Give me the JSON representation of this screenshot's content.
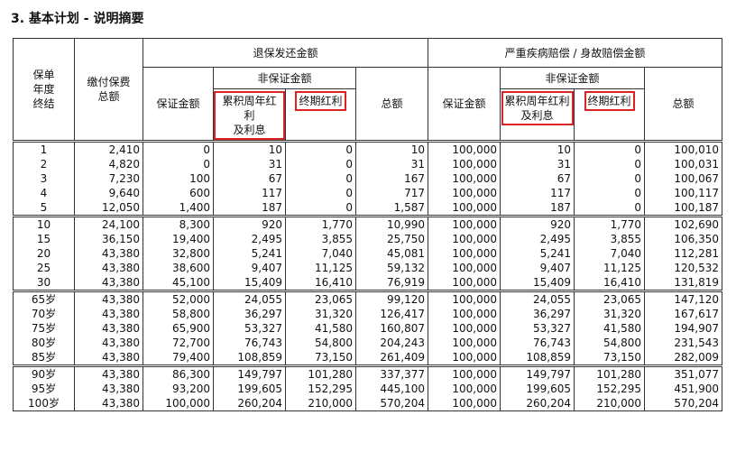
{
  "title": "3. 基本计划 - 说明摘要",
  "table": {
    "headers": {
      "policy_year": "保单\n年度\n终结",
      "premium": "缴付保费\n总额",
      "surrender_group": "退保发还金额",
      "claim_group": "严重疾病赔偿 / 身故赔偿金额",
      "guaranteed_1": "保证金额",
      "non_guaranteed_1": "非保证金额",
      "dividend_1": "累积周年红利\n及利息",
      "terminal_1": "终期红利",
      "total_1": "总额",
      "guaranteed_2": "保证金额",
      "non_guaranteed_2": "非保证金额",
      "dividend_2": "累积周年红利\n及利息",
      "terminal_2": "终期红利",
      "total_2": "总额"
    },
    "rows": [
      [
        "1",
        "2,410",
        "0",
        "10",
        "0",
        "10",
        "100,000",
        "10",
        "0",
        "100,010"
      ],
      [
        "2",
        "4,820",
        "0",
        "31",
        "0",
        "31",
        "100,000",
        "31",
        "0",
        "100,031"
      ],
      [
        "3",
        "7,230",
        "100",
        "67",
        "0",
        "167",
        "100,000",
        "67",
        "0",
        "100,067"
      ],
      [
        "4",
        "9,640",
        "600",
        "117",
        "0",
        "717",
        "100,000",
        "117",
        "0",
        "100,117"
      ],
      [
        "5",
        "12,050",
        "1,400",
        "187",
        "0",
        "1,587",
        "100,000",
        "187",
        "0",
        "100,187"
      ],
      [
        "10",
        "24,100",
        "8,300",
        "920",
        "1,770",
        "10,990",
        "100,000",
        "920",
        "1,770",
        "102,690"
      ],
      [
        "15",
        "36,150",
        "19,400",
        "2,495",
        "3,855",
        "25,750",
        "100,000",
        "2,495",
        "3,855",
        "106,350"
      ],
      [
        "20",
        "43,380",
        "32,800",
        "5,241",
        "7,040",
        "45,081",
        "100,000",
        "5,241",
        "7,040",
        "112,281"
      ],
      [
        "25",
        "43,380",
        "38,600",
        "9,407",
        "11,125",
        "59,132",
        "100,000",
        "9,407",
        "11,125",
        "120,532"
      ],
      [
        "30",
        "43,380",
        "45,100",
        "15,409",
        "16,410",
        "76,919",
        "100,000",
        "15,409",
        "16,410",
        "131,819"
      ],
      [
        "65岁",
        "43,380",
        "52,000",
        "24,055",
        "23,065",
        "99,120",
        "100,000",
        "24,055",
        "23,065",
        "147,120"
      ],
      [
        "70岁",
        "43,380",
        "58,800",
        "36,297",
        "31,320",
        "126,417",
        "100,000",
        "36,297",
        "31,320",
        "167,617"
      ],
      [
        "75岁",
        "43,380",
        "65,900",
        "53,327",
        "41,580",
        "160,807",
        "100,000",
        "53,327",
        "41,580",
        "194,907"
      ],
      [
        "80岁",
        "43,380",
        "72,700",
        "76,743",
        "54,800",
        "204,243",
        "100,000",
        "76,743",
        "54,800",
        "231,543"
      ],
      [
        "85岁",
        "43,380",
        "79,400",
        "108,859",
        "73,150",
        "261,409",
        "100,000",
        "108,859",
        "73,150",
        "282,009"
      ],
      [
        "90岁",
        "43,380",
        "86,300",
        "149,797",
        "101,280",
        "337,377",
        "100,000",
        "149,797",
        "101,280",
        "351,077"
      ],
      [
        "95岁",
        "43,380",
        "93,200",
        "199,605",
        "152,295",
        "445,100",
        "100,000",
        "199,605",
        "152,295",
        "451,900"
      ],
      [
        "100岁",
        "43,380",
        "100,000",
        "260,204",
        "210,000",
        "570,204",
        "100,000",
        "260,204",
        "210,000",
        "570,204"
      ]
    ]
  }
}
